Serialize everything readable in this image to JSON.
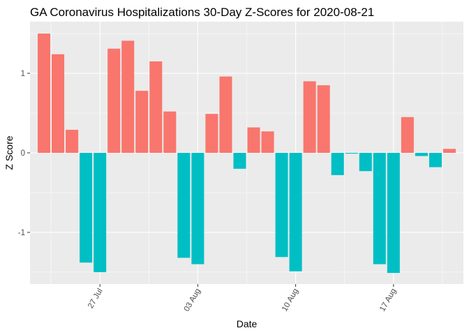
{
  "chart_data": {
    "type": "bar",
    "title": "GA Coronavirus Hospitalizations 30-Day Z-Scores for 2020-08-21",
    "xlabel": "Date",
    "ylabel": "Z Score",
    "ylim": [
      -1.65,
      1.65
    ],
    "y_ticks": [
      {
        "value": -1,
        "label": "-1"
      },
      {
        "value": 0,
        "label": "0"
      },
      {
        "value": 1,
        "label": "1"
      }
    ],
    "x_ticks": [
      {
        "date": "2020-07-27",
        "label": "27 Jul"
      },
      {
        "date": "2020-08-03",
        "label": "03 Aug"
      },
      {
        "date": "2020-08-10",
        "label": "10 Aug"
      },
      {
        "date": "2020-08-17",
        "label": "17 Aug"
      }
    ],
    "x_range": [
      "2020-07-22",
      "2020-08-22"
    ],
    "grid": true,
    "legend": "none",
    "colors": {
      "positive": "#F8766D",
      "negative": "#00BFC4",
      "panel_background": "#EBEBEB"
    },
    "dates": [
      "2020-07-23",
      "2020-07-24",
      "2020-07-25",
      "2020-07-26",
      "2020-07-27",
      "2020-07-28",
      "2020-07-29",
      "2020-07-30",
      "2020-07-31",
      "2020-08-01",
      "2020-08-02",
      "2020-08-03",
      "2020-08-04",
      "2020-08-05",
      "2020-08-06",
      "2020-08-07",
      "2020-08-08",
      "2020-08-09",
      "2020-08-10",
      "2020-08-11",
      "2020-08-12",
      "2020-08-13",
      "2020-08-14",
      "2020-08-15",
      "2020-08-16",
      "2020-08-17",
      "2020-08-18",
      "2020-08-19",
      "2020-08-20",
      "2020-08-21"
    ],
    "values": [
      1.5,
      1.24,
      0.29,
      -1.38,
      -1.5,
      1.31,
      1.41,
      0.78,
      1.15,
      0.52,
      -1.32,
      -1.4,
      0.49,
      0.96,
      -0.2,
      0.32,
      0.27,
      -1.31,
      -1.49,
      0.9,
      0.85,
      -0.28,
      -0.01,
      -0.23,
      -1.4,
      -1.51,
      0.45,
      -0.04,
      -0.18,
      0.05
    ]
  }
}
